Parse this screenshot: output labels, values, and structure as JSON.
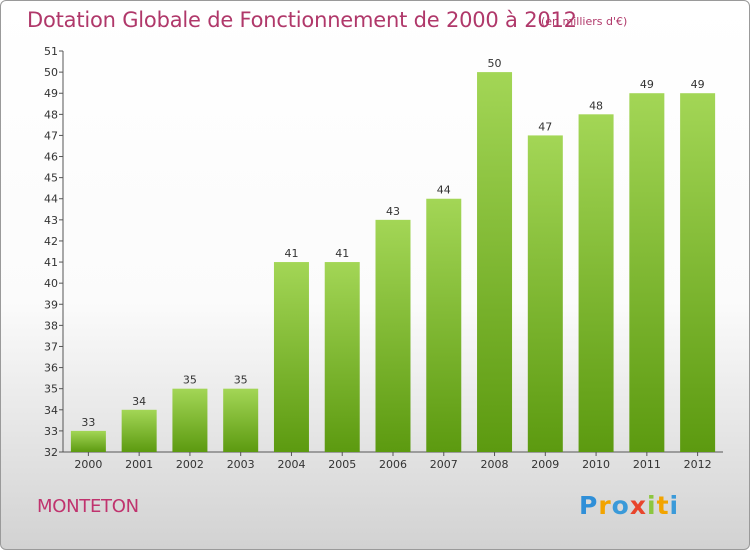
{
  "title": "Dotation Globale de Fonctionnement de 2000 à 2012",
  "subtitle": "(en milliers d'€)",
  "commune": "MONTETON",
  "logo": {
    "letters": [
      {
        "ch": "P",
        "color": "#2f8fd8"
      },
      {
        "ch": "r",
        "color": "#f2a400"
      },
      {
        "ch": "o",
        "color": "#3a9ad9"
      },
      {
        "ch": "x",
        "color": "#e8452c"
      },
      {
        "ch": "i",
        "color": "#8cc63f"
      },
      {
        "ch": "t",
        "color": "#f2a400"
      },
      {
        "ch": "i",
        "color": "#3a9ad9"
      }
    ]
  },
  "colors": {
    "bar_top": "#a3d656",
    "bar_bottom": "#5c9a10",
    "title": "#b0386a"
  },
  "chart_data": {
    "type": "bar",
    "title": "Dotation Globale de Fonctionnement de 2000 à 2012",
    "subtitle": "(en milliers d'€)",
    "categories": [
      "2000",
      "2001",
      "2002",
      "2003",
      "2004",
      "2005",
      "2006",
      "2007",
      "2008",
      "2009",
      "2010",
      "2011",
      "2012"
    ],
    "values": [
      33,
      34,
      35,
      35,
      41,
      41,
      43,
      44,
      50,
      47,
      48,
      49,
      49
    ],
    "ylim": [
      32,
      51
    ],
    "yticks": [
      32,
      33,
      34,
      35,
      36,
      37,
      38,
      39,
      40,
      41,
      42,
      43,
      44,
      45,
      46,
      47,
      48,
      49,
      50,
      51
    ],
    "xlabel": "",
    "ylabel": "",
    "grid": false,
    "legend": "none"
  }
}
